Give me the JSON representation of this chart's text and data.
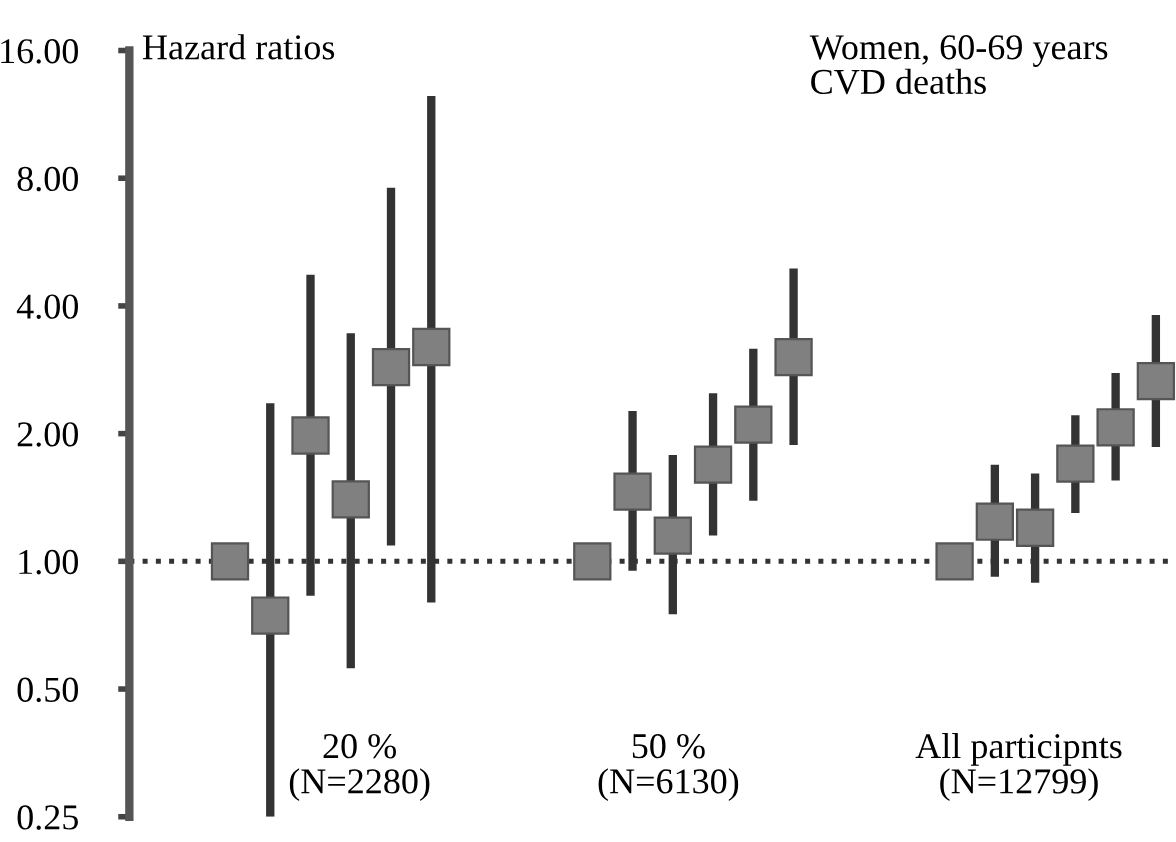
{
  "chart_data": {
    "type": "scatter",
    "title": "Women, 60-69 years",
    "subtitle": "CVD deaths",
    "ylabel": "Hazard ratios",
    "categories": [
      null,
      null,
      null,
      null,
      null,
      null,
      null,
      null,
      null,
      null,
      null,
      null,
      null,
      null,
      null,
      null,
      null,
      null,
      null,
      null,
      null,
      null,
      null,
      null,
      null,
      null
    ],
    "series": [
      {
        "color": "#808080",
        "values": [
          null,
          null,
          1.0,
          0.745,
          1.98,
          1.4,
          2.87,
          3.2,
          null,
          null,
          null,
          1.0,
          1.46,
          1.15,
          1.69,
          2.1,
          3.03,
          null,
          null,
          null,
          1.0,
          1.24,
          1.2,
          1.7,
          2.07,
          2.66
        ],
        "errors": [
          null,
          null,
          null,
          [
            0.25,
            2.36
          ],
          [
            0.83,
            4.74
          ],
          [
            0.56,
            3.45
          ],
          [
            1.09,
            7.6
          ],
          [
            0.8,
            12.5
          ],
          null,
          null,
          null,
          null,
          [
            0.95,
            2.26
          ],
          [
            0.75,
            1.78
          ],
          [
            1.15,
            2.49
          ],
          [
            1.39,
            3.17
          ],
          [
            1.88,
            4.9
          ],
          null,
          null,
          null,
          null,
          [
            0.92,
            1.69
          ],
          [
            0.89,
            1.61
          ],
          [
            1.3,
            2.21
          ],
          [
            1.55,
            2.78
          ],
          [
            1.86,
            3.81
          ]
        ]
      }
    ],
    "log": "y",
    "ylim": [
      0.25,
      16
    ],
    "yticks": [
      {
        "value": 0.25,
        "label": "0.25"
      },
      {
        "value": 0.5,
        "label": "0.50"
      },
      {
        "value": 1,
        "label": "1.00"
      },
      {
        "value": 2,
        "label": "2.00"
      },
      {
        "value": 4,
        "label": "4.00"
      },
      {
        "value": 8,
        "label": "8.00"
      },
      {
        "value": 16,
        "label": "16.00"
      }
    ],
    "tick_labels": "y",
    "marker": "square",
    "grid": false,
    "legend": false,
    "ref_lines": [
      {
        "axis": "y",
        "value": 1,
        "label": null,
        "color": "#333333",
        "line_style": "dotted"
      }
    ],
    "annotations": [
      "20 %\n(N=2280)",
      "50 %\n(N=6130)",
      "All participnts\n(N=12799)"
    ]
  }
}
